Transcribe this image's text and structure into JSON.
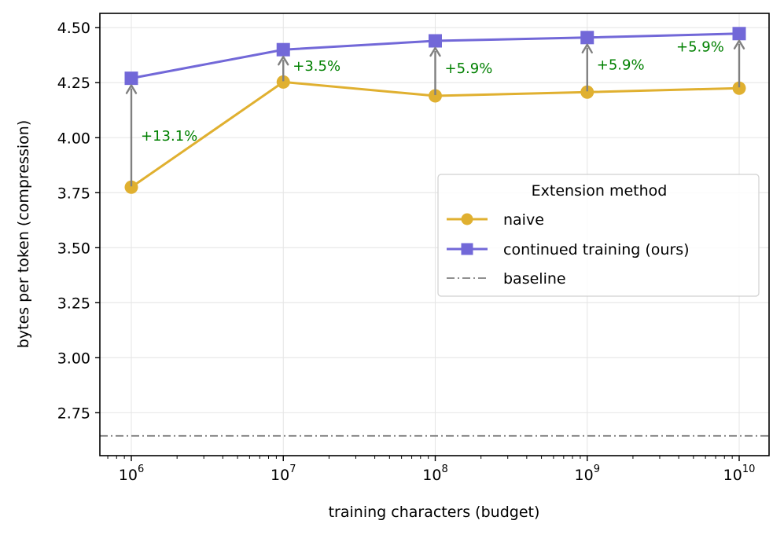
{
  "chart_data": {
    "type": "line",
    "title": "",
    "xlabel": "training characters (budget)",
    "ylabel": "bytes per token (compression)",
    "xscale": "log",
    "x": [
      1000000,
      10000000,
      100000000,
      1000000000,
      10000000000
    ],
    "x_tick_labels": [
      {
        "base": "10",
        "exp": "6"
      },
      {
        "base": "10",
        "exp": "7"
      },
      {
        "base": "10",
        "exp": "8"
      },
      {
        "base": "10",
        "exp": "9"
      },
      {
        "base": "10",
        "exp": "10"
      }
    ],
    "y_ticks": [
      "2.75",
      "3.00",
      "3.25",
      "3.50",
      "3.75",
      "4.00",
      "4.25",
      "4.50"
    ],
    "ylim": [
      2.555,
      4.565
    ],
    "grid": true,
    "series": [
      {
        "name": "naive",
        "color": "#e0b030",
        "marker": "circle",
        "values": [
          3.775,
          4.253,
          4.19,
          4.207,
          4.225
        ]
      },
      {
        "name": "continued training (ours)",
        "color": "#7268d8",
        "marker": "square",
        "values": [
          4.27,
          4.4,
          4.44,
          4.455,
          4.473
        ]
      }
    ],
    "baseline": {
      "name": "baseline",
      "value": 2.645,
      "color": "#808080",
      "style": "dash-dot"
    },
    "annotations": [
      "+13.1%",
      "+3.5%",
      "+5.9%",
      "+5.9%",
      "+5.9%"
    ],
    "annotation_color": "#008000",
    "arrow_color": "#808080",
    "legend": {
      "title": "Extension method",
      "placement": "center-right"
    }
  }
}
